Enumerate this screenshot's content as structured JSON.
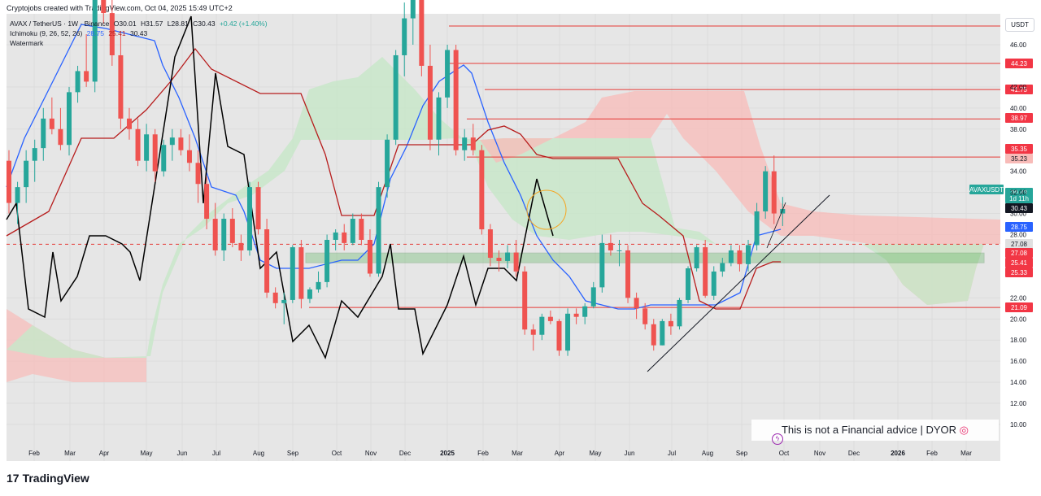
{
  "header": {
    "credit": "Cryptojobs created with TradingView.com, Oct 04, 2025 15:49 UTC+2"
  },
  "legend": {
    "symbol": "AVAX / TetherUS · 1W · Binance",
    "ohlc": [
      "O30.01",
      "H31.57",
      "L28.81",
      "C30.43",
      "+0.42 (+1.40%)"
    ],
    "indicator_name": "Ichimoku (9, 26, 52, 26)",
    "indicator_values": [
      "28.75",
      "25.41",
      "30.43"
    ],
    "watermark": "Watermark"
  },
  "price_axis_unit": "USDT",
  "colors": {
    "up": "#26a69a",
    "down": "#ef5350",
    "conversion": "#2962ff",
    "base": "#b71c1c",
    "lagging": "#000000",
    "cloud_bear": "#f8bbb8",
    "cloud_bull": "#c8e6c9",
    "level_line": "#e53935",
    "zone": "#4caf50"
  },
  "disclaimer": "This is not a Financial advice | DYOR",
  "brand": {
    "logo": "17",
    "name": "TradingView"
  },
  "chart_data": {
    "type": "candlestick",
    "y_ticks": [
      46,
      42,
      40,
      38,
      34,
      32,
      30,
      28,
      22,
      20,
      18,
      16,
      14,
      12,
      10
    ],
    "x_labels": [
      "Feb",
      "Mar",
      "Apr",
      "May",
      "Jun",
      "Jul",
      "Aug",
      "Sep",
      "Oct",
      "Nov",
      "Dec",
      "2025",
      "Feb",
      "Mar",
      "Apr",
      "May",
      "Jun",
      "Jul",
      "Aug",
      "Sep",
      "Oct",
      "Nov",
      "Dec",
      "2026",
      "Feb",
      "Mar"
    ],
    "price_labels": [
      {
        "value": "44.23",
        "style": "red"
      },
      {
        "value": "41.75",
        "style": "red"
      },
      {
        "value": "38.97",
        "style": "red"
      },
      {
        "value": "35.35",
        "style": "red"
      },
      {
        "value": "35.23",
        "style": "pink"
      },
      {
        "value": "AVAXUSDT",
        "style": "teal"
      },
      {
        "value": "30.43",
        "style": "teal"
      },
      {
        "value": "1d 11h",
        "style": "teal"
      },
      {
        "value": "30.43",
        "style": "black"
      },
      {
        "value": "28.75",
        "style": "blue"
      },
      {
        "value": "27.08",
        "style": "gray"
      },
      {
        "value": "27.08",
        "style": "red"
      },
      {
        "value": "25.41",
        "style": "red"
      },
      {
        "value": "25.33",
        "style": "red"
      },
      {
        "value": "21.09",
        "style": "red"
      }
    ],
    "levels": [
      44.23,
      41.75,
      38.97,
      35.35,
      21.09
    ],
    "dashed_level": 27.08,
    "zone": [
      25.33,
      26.25
    ],
    "trendline": {
      "from": [
        "2025-Jun",
        15.0
      ],
      "to": [
        "2025-Oct",
        31.5
      ]
    },
    "candles_ohlc": [
      [
        35,
        36,
        30,
        31
      ],
      [
        31,
        33,
        29,
        32.5
      ],
      [
        32.5,
        36,
        31,
        35
      ],
      [
        35,
        37,
        33,
        36.2
      ],
      [
        36.2,
        40,
        35,
        39
      ],
      [
        39,
        41,
        37.5,
        38
      ],
      [
        38,
        40,
        36,
        36.5
      ],
      [
        36.5,
        42,
        35.5,
        41.5
      ],
      [
        41.5,
        44,
        40.5,
        43.5
      ],
      [
        43.5,
        47,
        42,
        42.5
      ],
      [
        42.5,
        52,
        41.5,
        51
      ],
      [
        51,
        54,
        48,
        49
      ],
      [
        49,
        50.5,
        44,
        45
      ],
      [
        45,
        47,
        38,
        39
      ],
      [
        39,
        40,
        37,
        38
      ],
      [
        38,
        39,
        34.5,
        35
      ],
      [
        35,
        38.5,
        34,
        37.5
      ],
      [
        37.5,
        38,
        33,
        34
      ],
      [
        34,
        37,
        33.5,
        36.5
      ],
      [
        36.5,
        38,
        35,
        37.2
      ],
      [
        37.2,
        38,
        35.5,
        36
      ],
      [
        36,
        37.5,
        34,
        34.8
      ],
      [
        34.8,
        36,
        31,
        32.8
      ],
      [
        32.8,
        33.5,
        28.5,
        29.5
      ],
      [
        29.5,
        31,
        26,
        26.5
      ],
      [
        26.5,
        30,
        25.5,
        29.5
      ],
      [
        29.5,
        30.5,
        26.8,
        27.2
      ],
      [
        27.2,
        28,
        25.5,
        26.5
      ],
      [
        26.5,
        33,
        26,
        32.5
      ],
      [
        32.5,
        33,
        28,
        28.5
      ],
      [
        28.5,
        29.5,
        22,
        22.5
      ],
      [
        22.5,
        23,
        21,
        21.5
      ],
      [
        21.5,
        22.5,
        19.5,
        21.8
      ],
      [
        21.8,
        27,
        21.5,
        26.8
      ],
      [
        26.8,
        27.5,
        21,
        21.9
      ],
      [
        21.9,
        23,
        21.5,
        22.8
      ],
      [
        22.8,
        24.5,
        22.5,
        23.5
      ],
      [
        23.5,
        28,
        23,
        27.5
      ],
      [
        27.5,
        28.5,
        26.5,
        28.2
      ],
      [
        28.2,
        29,
        26.5,
        27.2
      ],
      [
        27.2,
        30,
        27,
        29.5
      ],
      [
        29.5,
        30,
        27,
        27.5
      ],
      [
        27.5,
        28.5,
        24,
        24.3
      ],
      [
        24.3,
        33,
        24,
        32.5
      ],
      [
        32.5,
        37.5,
        31.5,
        37
      ],
      [
        37,
        45.5,
        36.5,
        45
      ],
      [
        45,
        50,
        43,
        48.5
      ],
      [
        48.5,
        65,
        46,
        63
      ],
      [
        63,
        64,
        43,
        44
      ],
      [
        44,
        46,
        36,
        37
      ],
      [
        37,
        41.5,
        35.5,
        41
      ],
      [
        41,
        46,
        40,
        45.5
      ],
      [
        45.5,
        46,
        35.5,
        36
      ],
      [
        36,
        38,
        35,
        37.2
      ],
      [
        37.2,
        38.5,
        35.5,
        36
      ],
      [
        36,
        36.5,
        28,
        28.5
      ],
      [
        28.5,
        29,
        25,
        25.8
      ],
      [
        25.8,
        26.5,
        24.5,
        25.5
      ],
      [
        25.5,
        27,
        24.8,
        26.3
      ],
      [
        26.3,
        27.5,
        24,
        24.5
      ],
      [
        24.5,
        25,
        18.5,
        19
      ],
      [
        19,
        19.5,
        17,
        18.5
      ],
      [
        18.5,
        20.5,
        18,
        20.2
      ],
      [
        20.2,
        20.8,
        19.5,
        19.8
      ],
      [
        19.8,
        20,
        16.5,
        17
      ],
      [
        17,
        21,
        16.5,
        20.5
      ],
      [
        20.5,
        21,
        19.5,
        20.2
      ],
      [
        20.2,
        21.5,
        19.5,
        21.2
      ],
      [
        21.2,
        23.5,
        21,
        23
      ],
      [
        23,
        28,
        22.5,
        27.2
      ],
      [
        27.2,
        28,
        26,
        26.5
      ],
      [
        26.5,
        27.5,
        25,
        26.5
      ],
      [
        26.5,
        27,
        21.5,
        22
      ],
      [
        22,
        22.5,
        20,
        21
      ],
      [
        21,
        21.5,
        19,
        19.5
      ],
      [
        19.5,
        20,
        17,
        17.5
      ],
      [
        17.5,
        20,
        17.5,
        19.8
      ],
      [
        19.8,
        20.5,
        18.5,
        19.3
      ],
      [
        19.3,
        22,
        19,
        21.8
      ],
      [
        21.8,
        25,
        21.5,
        24.8
      ],
      [
        24.8,
        27,
        24.5,
        26.8
      ],
      [
        26.8,
        27.5,
        22,
        22.2
      ],
      [
        22.2,
        25,
        21.8,
        24.5
      ],
      [
        24.5,
        25.8,
        24,
        25.3
      ],
      [
        25.3,
        27,
        25,
        26.5
      ],
      [
        26.5,
        27,
        24.5,
        25.2
      ],
      [
        25.2,
        27.5,
        24.5,
        27
      ],
      [
        27,
        31,
        26.5,
        30.2
      ],
      [
        30.2,
        34.5,
        29.5,
        34
      ],
      [
        34,
        35.5,
        29,
        30
      ],
      [
        30,
        31.57,
        28.81,
        30.43
      ]
    ]
  }
}
